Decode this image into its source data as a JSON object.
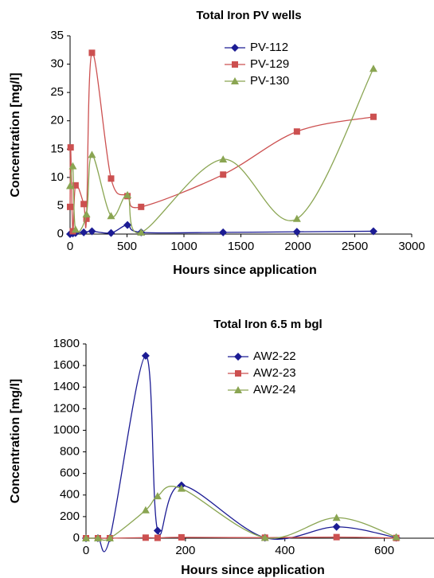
{
  "chart_data": [
    {
      "type": "line",
      "title": "Total Iron PV wells",
      "x_label": "Hours since application",
      "y_label": "Concentration [mg/l]",
      "xlim": [
        0,
        3000
      ],
      "xticks": [
        0,
        500,
        1000,
        1500,
        2000,
        2500,
        3000
      ],
      "ylim": [
        0,
        35
      ],
      "yticks": [
        0,
        5,
        10,
        15,
        20,
        25,
        30,
        35
      ],
      "grid": false,
      "smooth": true,
      "legend": "upper center",
      "series": [
        {
          "name": "PV-112",
          "color": "#1c1c94",
          "marker": "diamond",
          "x": [
            0,
            24,
            48,
            120,
            192,
            360,
            504,
            624,
            1344,
            1992,
            2664
          ],
          "values": [
            0,
            0.1,
            0.2,
            0.3,
            0.5,
            0.2,
            1.6,
            0.3,
            0.3,
            0.4,
            0.5
          ]
        },
        {
          "name": "PV-129",
          "color": "#cc5050",
          "marker": "square",
          "x": [
            0,
            5,
            24,
            48,
            120,
            144,
            192,
            360,
            504,
            624,
            1344,
            1992,
            2664
          ],
          "values": [
            4.8,
            15.3,
            0.5,
            8.6,
            5.3,
            2.7,
            32,
            9.8,
            6.7,
            4.8,
            10.5,
            18.1,
            20.7
          ]
        },
        {
          "name": "PV-130",
          "color": "#8aa552",
          "marker": "triangle",
          "x": [
            0,
            24,
            48,
            144,
            192,
            360,
            504,
            624,
            1344,
            1992,
            2664
          ],
          "values": [
            8.5,
            12,
            0.8,
            3.5,
            14,
            3.2,
            6.9,
            0.3,
            13.2,
            2.7,
            29.2
          ]
        }
      ]
    },
    {
      "type": "line",
      "title": "Total Iron 6.5 m bgl",
      "x_label": "Hours since application",
      "y_label": "Concentration [mg/l]",
      "xlim": [
        0,
        700
      ],
      "xticks": [
        0,
        200,
        400,
        600
      ],
      "ylim": [
        0,
        1800
      ],
      "yticks": [
        0,
        200,
        400,
        600,
        800,
        1000,
        1200,
        1400,
        1600,
        1800
      ],
      "grid": false,
      "smooth": true,
      "legend": "upper center",
      "series": [
        {
          "name": "AW2-22",
          "color": "#1c1c94",
          "marker": "diamond",
          "x": [
            0,
            24,
            48,
            120,
            144,
            192,
            360,
            504,
            624
          ],
          "values": [
            0,
            0,
            0,
            1690,
            70,
            490,
            5,
            105,
            5
          ]
        },
        {
          "name": "AW2-23",
          "color": "#cc5050",
          "marker": "square",
          "x": [
            0,
            24,
            48,
            120,
            144,
            192,
            360,
            504,
            624
          ],
          "values": [
            0,
            0,
            0,
            5,
            3,
            8,
            5,
            10,
            2
          ]
        },
        {
          "name": "AW2-24",
          "color": "#8aa552",
          "marker": "triangle",
          "x": [
            0,
            24,
            48,
            120,
            144,
            192,
            360,
            504,
            624
          ],
          "values": [
            0,
            0,
            0,
            260,
            390,
            460,
            5,
            190,
            10
          ]
        }
      ]
    }
  ]
}
